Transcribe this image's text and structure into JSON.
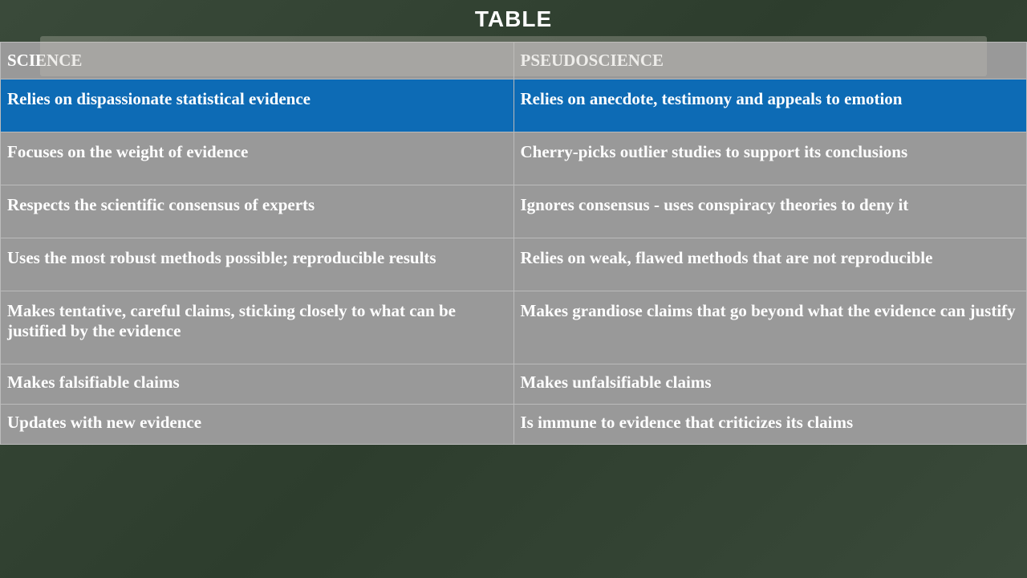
{
  "title": "TABLE",
  "table": {
    "columns": [
      "SCIENCE",
      "PSEUDOSCIENCE"
    ],
    "highlighted_row_index": 0,
    "colors": {
      "background": "#3a4a3a",
      "cell_bg": "#999999",
      "highlight_bg": "#0d6bb5",
      "text": "#ffffff",
      "border": "#bbbbbb"
    },
    "font": {
      "family": "Georgia, serif",
      "size_pt": 16,
      "weight": "bold"
    },
    "rows": [
      {
        "science": "Relies on dispassionate statistical evidence",
        "pseudo": "Relies on anecdote, testimony and appeals to emotion",
        "short": false
      },
      {
        "science": "Focuses on the weight of evidence",
        "pseudo": "Cherry-picks outlier studies to support its conclusions",
        "short": false
      },
      {
        "science": "Respects the scientific consensus of experts",
        "pseudo": "Ignores consensus - uses conspiracy theories to deny it",
        "short": false
      },
      {
        "science": "Uses the most robust methods possible; reproducible results",
        "pseudo": "Relies on weak, flawed methods that are not reproducible",
        "short": false
      },
      {
        "science": "Makes tentative, careful claims, sticking closely to what can be justified by the evidence",
        "pseudo": "Makes grandiose claims that go beyond what the evidence can justify",
        "short": false
      },
      {
        "science": "Makes falsifiable claims",
        "pseudo": "Makes unfalsifiable claims",
        "short": true
      },
      {
        "science": "Updates with new evidence",
        "pseudo": "Is immune to evidence that criticizes its claims",
        "short": true
      }
    ]
  }
}
